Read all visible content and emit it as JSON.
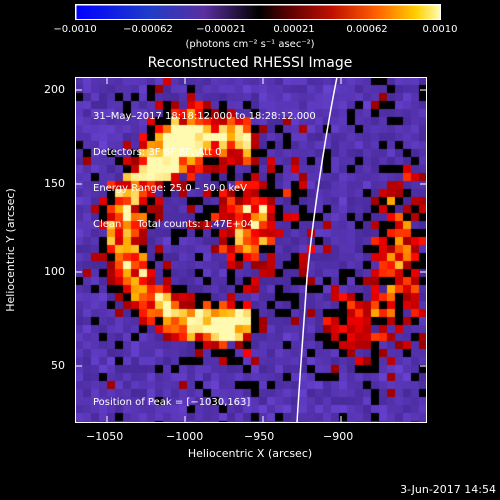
{
  "colorbar": {
    "ticks": [
      "−0.0010",
      "−0.00062",
      "−0.00021",
      "0.00021",
      "0.00062",
      "0.0010"
    ],
    "units": "(photons cm⁻² s⁻¹ asec⁻²)"
  },
  "title": "Reconstructed RHESSI Image",
  "info": {
    "line1": "31–May–2017 18:18:12.000 to 18:28:12.000",
    "line2": "Detectors: 3F 6F 8F, Att 0",
    "line3": "Energy Range: 25.0 – 50.0 keV",
    "line4": "Clean     Total counts: 1.47E+04",
    "peak": "Position of Peak = [−1030,163]"
  },
  "axes": {
    "xlabel": "Heliocentric X (arcsec)",
    "ylabel": "Heliocentric Y (arcsec)",
    "xticks": [
      "−1050",
      "−1000",
      "−950",
      "−900"
    ],
    "yticks": [
      "200",
      "150",
      "100",
      "50"
    ]
  },
  "timestamp": "3-Jun-2017 14:54",
  "colors": {
    "background": "#000000",
    "frame": "#ffffff"
  }
}
